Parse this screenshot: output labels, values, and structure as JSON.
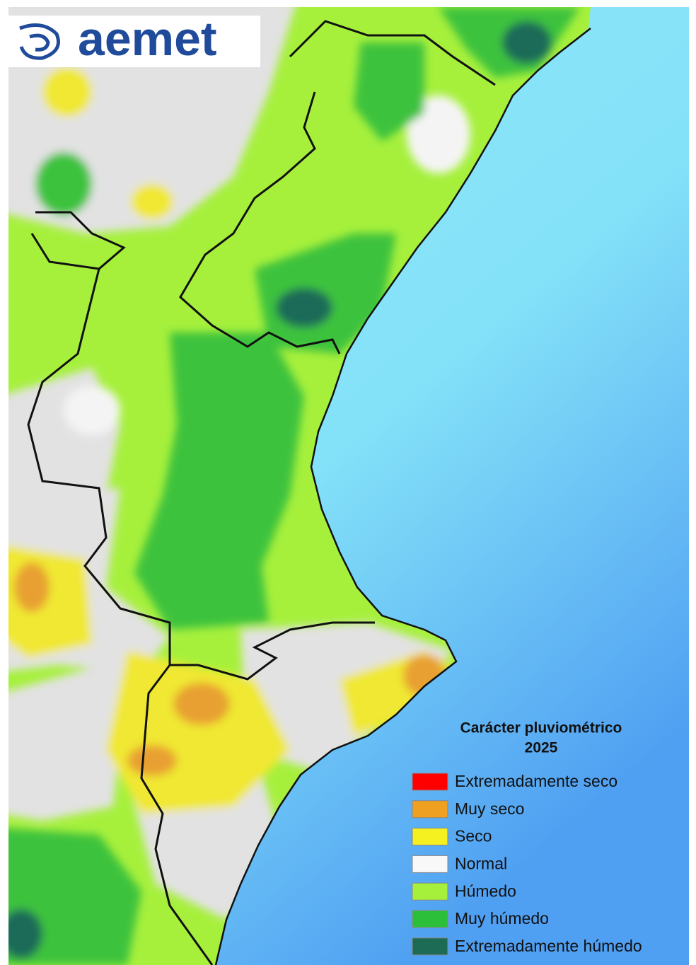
{
  "logo": {
    "text": "aemet"
  },
  "legend": {
    "title": "Carácter pluviométrico",
    "subtitle": "2025",
    "items": [
      {
        "label": "Extremadamente seco",
        "color": "#ff0000"
      },
      {
        "label": "Muy seco",
        "color": "#f0a020"
      },
      {
        "label": "Seco",
        "color": "#f5f020"
      },
      {
        "label": "Normal",
        "color": "#f8f8f8"
      },
      {
        "label": "Húmedo",
        "color": "#a6f03c"
      },
      {
        "label": "Muy húmedo",
        "color": "#2cc03a"
      },
      {
        "label": "Extremadamente húmedo",
        "color": "#1d6b55"
      }
    ]
  }
}
